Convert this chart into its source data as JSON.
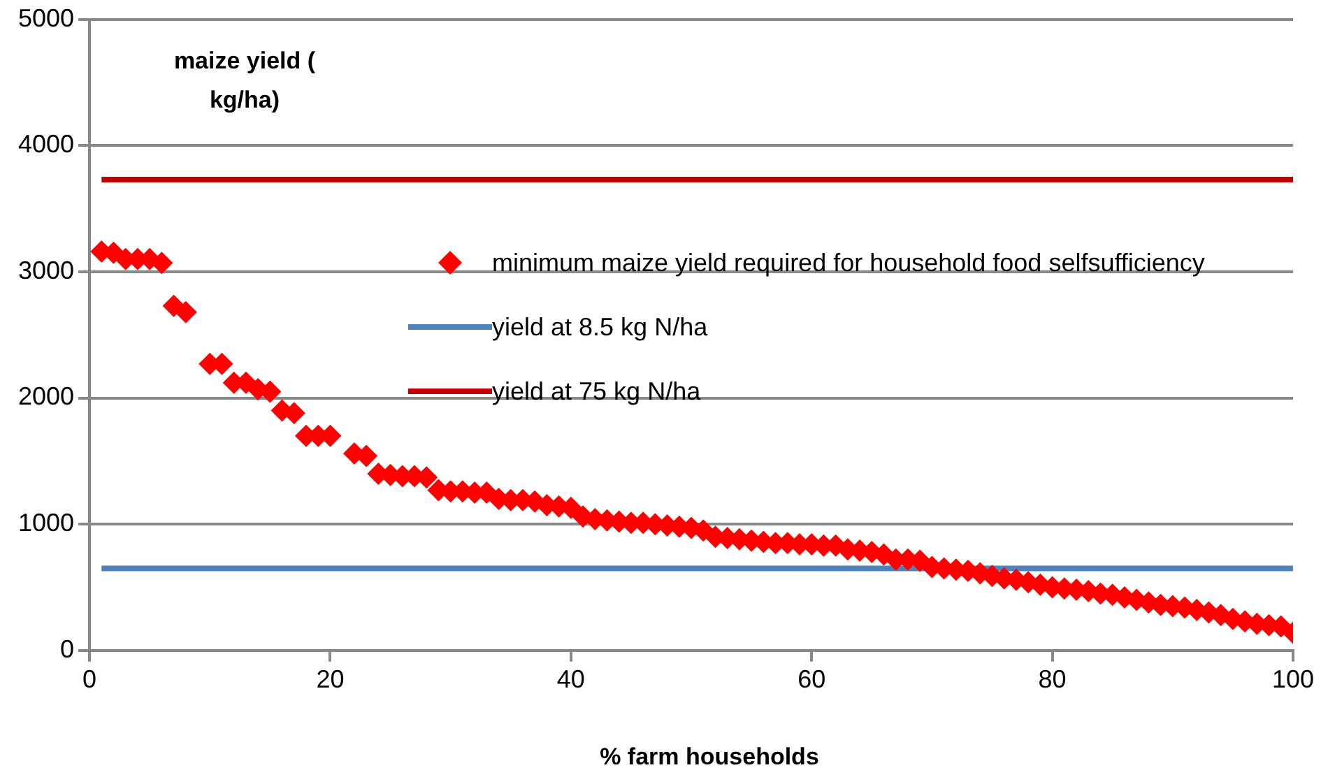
{
  "chart_data": {
    "type": "scatter",
    "xlabel": "% farm households",
    "ylabel": "maize yield ( kg/ha)",
    "xlim": [
      0,
      100
    ],
    "xticks": [
      0,
      20,
      40,
      60,
      80,
      100
    ],
    "ylim": [
      0,
      5000
    ],
    "yticks": [
      0,
      1000,
      2000,
      3000,
      4000,
      5000
    ],
    "grid": "y",
    "legend": "right",
    "series": [
      {
        "name": "minimum maize yield required for household food selfsufficiency",
        "color": "#ff0000",
        "marker": "diamond",
        "x": [
          1,
          2,
          3,
          4,
          5,
          6,
          7,
          8,
          10,
          11,
          12,
          13,
          14,
          15,
          16,
          17,
          18,
          19,
          20,
          22,
          23,
          24,
          25,
          26,
          27,
          28,
          29,
          30,
          31,
          32,
          33,
          34,
          35,
          36,
          37,
          38,
          39,
          40,
          41,
          42,
          43,
          44,
          45,
          46,
          47,
          48,
          49,
          50,
          51,
          52,
          53,
          54,
          55,
          56,
          57,
          58,
          59,
          60,
          61,
          62,
          63,
          64,
          65,
          66,
          67,
          68,
          69,
          70,
          71,
          72,
          73,
          74,
          75,
          76,
          77,
          78,
          79,
          80,
          81,
          82,
          83,
          84,
          85,
          86,
          87,
          88,
          89,
          90,
          91,
          92,
          93,
          94,
          95,
          96,
          97,
          98,
          99,
          100
        ],
        "values": [
          3160,
          3150,
          3100,
          3100,
          3100,
          3070,
          2730,
          2680,
          2270,
          2270,
          2120,
          2120,
          2070,
          2050,
          1900,
          1880,
          1700,
          1700,
          1700,
          1560,
          1540,
          1400,
          1390,
          1380,
          1380,
          1370,
          1270,
          1260,
          1260,
          1250,
          1250,
          1200,
          1190,
          1190,
          1180,
          1150,
          1140,
          1130,
          1060,
          1040,
          1030,
          1020,
          1010,
          1010,
          1000,
          990,
          980,
          970,
          950,
          900,
          890,
          880,
          870,
          860,
          850,
          850,
          840,
          840,
          830,
          830,
          800,
          790,
          780,
          760,
          720,
          720,
          710,
          660,
          650,
          640,
          630,
          610,
          590,
          570,
          560,
          540,
          520,
          500,
          490,
          480,
          470,
          450,
          440,
          420,
          400,
          380,
          360,
          350,
          340,
          320,
          300,
          280,
          250,
          230,
          210,
          200,
          190,
          140
        ]
      },
      {
        "name": "yield at 8.5 kg N/ha",
        "color": "#4f81bd",
        "type": "line",
        "marker": "none",
        "x": [
          1,
          100
        ],
        "values": [
          650,
          650
        ]
      },
      {
        "name": "yield at 75 kg N/ha",
        "color": "#c00000",
        "type": "line",
        "marker": "none",
        "x": [
          1,
          100
        ],
        "values": [
          3730,
          3730
        ]
      }
    ]
  }
}
